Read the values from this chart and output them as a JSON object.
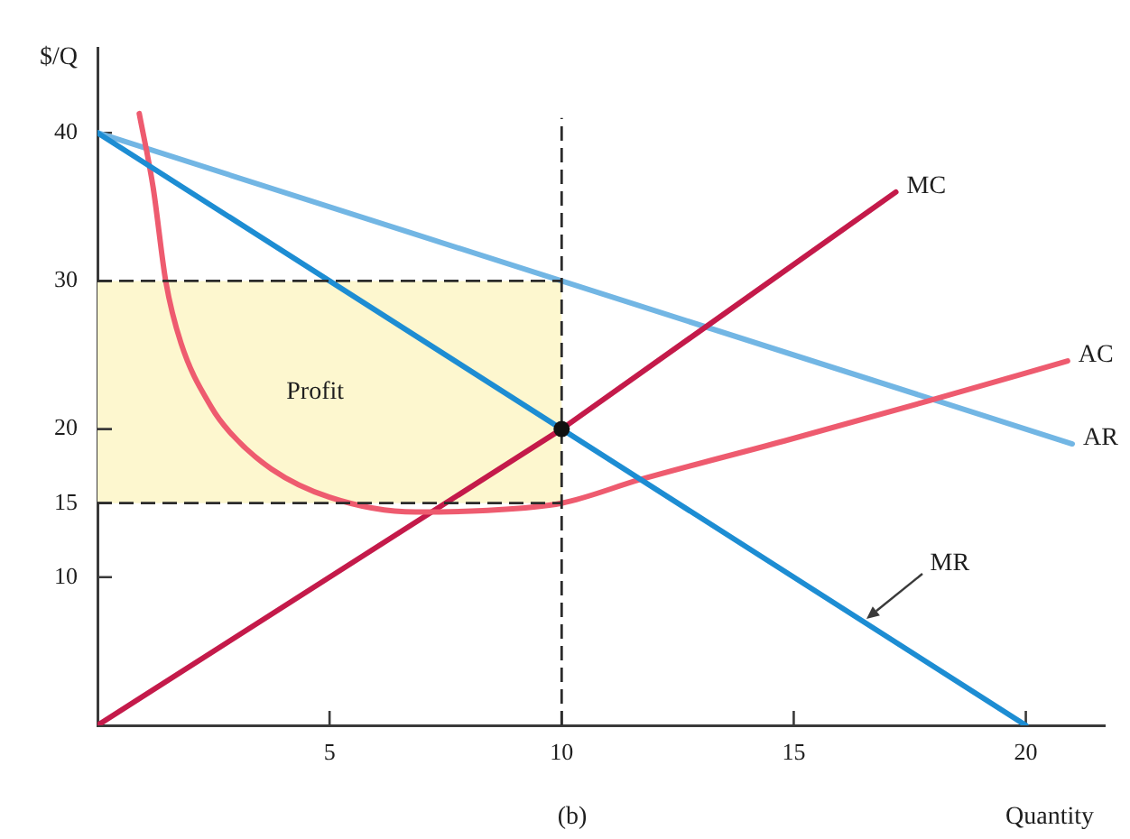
{
  "chart_data": {
    "type": "line",
    "xlabel": "Quantity",
    "ylabel": "$/Q",
    "annotations": [
      "Profit",
      "(b)"
    ],
    "xlim": [
      0,
      21.7
    ],
    "ylim": [
      0,
      45.7
    ],
    "xticks": [
      5,
      10,
      15,
      20
    ],
    "yticks": [
      10,
      15,
      20,
      30,
      40
    ],
    "series": [
      {
        "name": "AR",
        "x": [
          0,
          21
        ],
        "values": [
          40,
          19
        ],
        "color": "#72b6e4"
      },
      {
        "name": "MC",
        "x": [
          0,
          10,
          17.2
        ],
        "values": [
          0,
          20,
          36
        ],
        "color": "#c41a4a"
      },
      {
        "name": "AC",
        "x": [
          0.9,
          1.2,
          1.47,
          1.8,
          2.45,
          2.85,
          3.75,
          5,
          6.85,
          8.3,
          10,
          11.7,
          14.8,
          17.9,
          20.9
        ],
        "values": [
          41.3,
          36.3,
          30,
          25.8,
          21.5,
          19.8,
          17.3,
          15.4,
          14.4,
          14.5,
          15,
          16.6,
          19.2,
          21.9,
          24.6
        ],
        "color": "#ee5b6f"
      },
      {
        "name": "MR",
        "x": [
          0,
          20
        ],
        "values": [
          40,
          0
        ],
        "color": "#1d8dd3"
      },
      {
        "x": [
          0,
          10
        ],
        "values": [
          30,
          30
        ],
        "lower": [
          15,
          15
        ],
        "upper": [
          30,
          30
        ],
        "color": "#2b2b2b",
        "line_style": "dashed"
      },
      {
        "x": [
          0,
          10
        ],
        "values": [
          15,
          15
        ],
        "color": "#2b2b2b",
        "line_style": "dashed"
      },
      {
        "x": [
          10,
          10
        ],
        "values": [
          0,
          41
        ],
        "color": "#2b2b2b",
        "line_style": "dashed"
      },
      {
        "type": "scatter",
        "x": [
          10
        ],
        "values": [
          20
        ],
        "color": "#111111",
        "marker": "circle"
      }
    ]
  }
}
